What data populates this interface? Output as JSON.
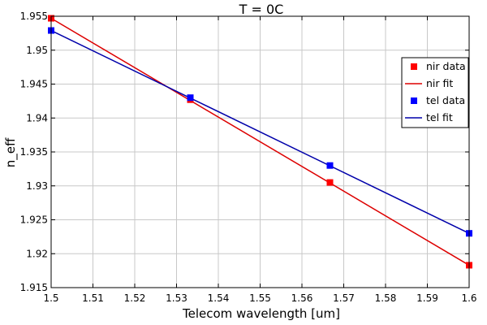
{
  "chart_data": {
    "type": "scatter",
    "title": "T = 0C",
    "xlabel": "Telecom wavelength [um]",
    "ylabel": "n_eff",
    "xlim": [
      1.5,
      1.6
    ],
    "ylim": [
      1.915,
      1.955
    ],
    "xticks": [
      "1.5",
      "1.51",
      "1.52",
      "1.53",
      "1.54",
      "1.55",
      "1.56",
      "1.57",
      "1.58",
      "1.59",
      "1.6"
    ],
    "yticks": [
      "1.915",
      "1.92",
      "1.925",
      "1.93",
      "1.935",
      "1.94",
      "1.945",
      "1.95",
      "1.955"
    ],
    "grid": true,
    "legend_position": "top-right",
    "series": [
      {
        "name": "nir data",
        "kind": "points",
        "color": "#ff0000",
        "x": [
          1.5,
          1.5333,
          1.5667,
          1.6
        ],
        "y": [
          1.9547,
          1.9427,
          1.9305,
          1.9183
        ]
      },
      {
        "name": "nir fit",
        "kind": "line",
        "color": "#dd0000",
        "x": [
          1.5,
          1.6
        ],
        "y": [
          1.9547,
          1.9183
        ]
      },
      {
        "name": "tel data",
        "kind": "points",
        "color": "#0000ff",
        "x": [
          1.5,
          1.5333,
          1.5667,
          1.6
        ],
        "y": [
          1.9529,
          1.943,
          1.933,
          1.923
        ]
      },
      {
        "name": "tel fit",
        "kind": "line",
        "color": "#0000aa",
        "x": [
          1.5,
          1.6
        ],
        "y": [
          1.9529,
          1.923
        ]
      }
    ]
  }
}
